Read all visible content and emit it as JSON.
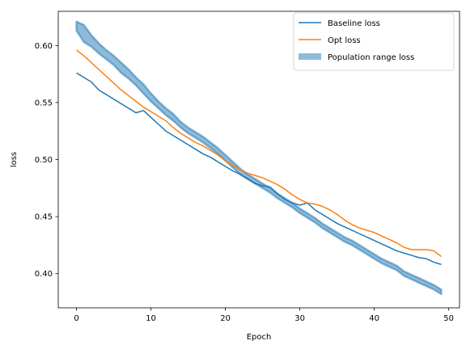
{
  "chart_data": {
    "type": "line",
    "xlabel": "Epoch",
    "ylabel": "loss",
    "xlim": [
      -2.45,
      51.45
    ],
    "ylim": [
      0.37,
      0.63
    ],
    "xticks": [
      0,
      10,
      20,
      30,
      40,
      50
    ],
    "yticks": [
      0.4,
      0.45,
      0.5,
      0.55,
      0.6
    ],
    "xtick_labels": [
      "0",
      "10",
      "20",
      "30",
      "40",
      "50"
    ],
    "ytick_labels": [
      "0.40",
      "0.45",
      "0.50",
      "0.55",
      "0.60"
    ],
    "grid": false,
    "legend_position": "top-right",
    "x": [
      0,
      1,
      2,
      3,
      4,
      5,
      6,
      7,
      8,
      9,
      10,
      11,
      12,
      13,
      14,
      15,
      16,
      17,
      18,
      19,
      20,
      21,
      22,
      23,
      24,
      25,
      26,
      27,
      28,
      29,
      30,
      31,
      32,
      33,
      34,
      35,
      36,
      37,
      38,
      39,
      40,
      41,
      42,
      43,
      44,
      45,
      46,
      47,
      48,
      49
    ],
    "series": [
      {
        "name": "Baseline loss",
        "color": "#1f77b4",
        "style": "line",
        "values": [
          0.576,
          0.572,
          0.568,
          0.561,
          0.557,
          0.553,
          0.549,
          0.545,
          0.541,
          0.543,
          0.537,
          0.531,
          0.525,
          0.521,
          0.517,
          0.513,
          0.509,
          0.505,
          0.502,
          0.498,
          0.494,
          0.49,
          0.487,
          0.483,
          0.479,
          0.477,
          0.476,
          0.47,
          0.465,
          0.462,
          0.46,
          0.462,
          0.456,
          0.452,
          0.448,
          0.444,
          0.441,
          0.438,
          0.435,
          0.432,
          0.429,
          0.426,
          0.423,
          0.42,
          0.418,
          0.416,
          0.414,
          0.413,
          0.41,
          0.408
        ]
      },
      {
        "name": "Opt loss",
        "color": "#ff7f0e",
        "style": "line",
        "values": [
          0.596,
          0.591,
          0.585,
          0.579,
          0.573,
          0.567,
          0.561,
          0.556,
          0.551,
          0.546,
          0.542,
          0.538,
          0.534,
          0.528,
          0.523,
          0.519,
          0.515,
          0.512,
          0.508,
          0.504,
          0.499,
          0.495,
          0.491,
          0.488,
          0.486,
          0.484,
          0.481,
          0.478,
          0.474,
          0.469,
          0.465,
          0.462,
          0.461,
          0.459,
          0.456,
          0.452,
          0.447,
          0.443,
          0.44,
          0.438,
          0.436,
          0.433,
          0.43,
          0.427,
          0.423,
          0.421,
          0.421,
          0.421,
          0.42,
          0.415
        ]
      },
      {
        "name": "Population range loss",
        "color": "#1f77b4",
        "style": "band",
        "lower": [
          0.613,
          0.603,
          0.599,
          0.593,
          0.588,
          0.583,
          0.576,
          0.571,
          0.565,
          0.558,
          0.551,
          0.545,
          0.539,
          0.534,
          0.528,
          0.523,
          0.519,
          0.515,
          0.51,
          0.505,
          0.499,
          0.493,
          0.487,
          0.483,
          0.479,
          0.475,
          0.471,
          0.466,
          0.462,
          0.458,
          0.453,
          0.449,
          0.445,
          0.44,
          0.436,
          0.432,
          0.428,
          0.425,
          0.421,
          0.417,
          0.413,
          0.409,
          0.406,
          0.403,
          0.398,
          0.395,
          0.392,
          0.389,
          0.386,
          0.382
        ],
        "upper": [
          0.621,
          0.618,
          0.609,
          0.602,
          0.596,
          0.591,
          0.585,
          0.579,
          0.572,
          0.566,
          0.558,
          0.551,
          0.545,
          0.54,
          0.533,
          0.528,
          0.524,
          0.52,
          0.515,
          0.51,
          0.504,
          0.498,
          0.492,
          0.487,
          0.483,
          0.479,
          0.475,
          0.47,
          0.466,
          0.462,
          0.457,
          0.453,
          0.449,
          0.444,
          0.44,
          0.436,
          0.432,
          0.429,
          0.425,
          0.421,
          0.417,
          0.413,
          0.41,
          0.407,
          0.402,
          0.399,
          0.396,
          0.393,
          0.39,
          0.386
        ]
      }
    ]
  }
}
